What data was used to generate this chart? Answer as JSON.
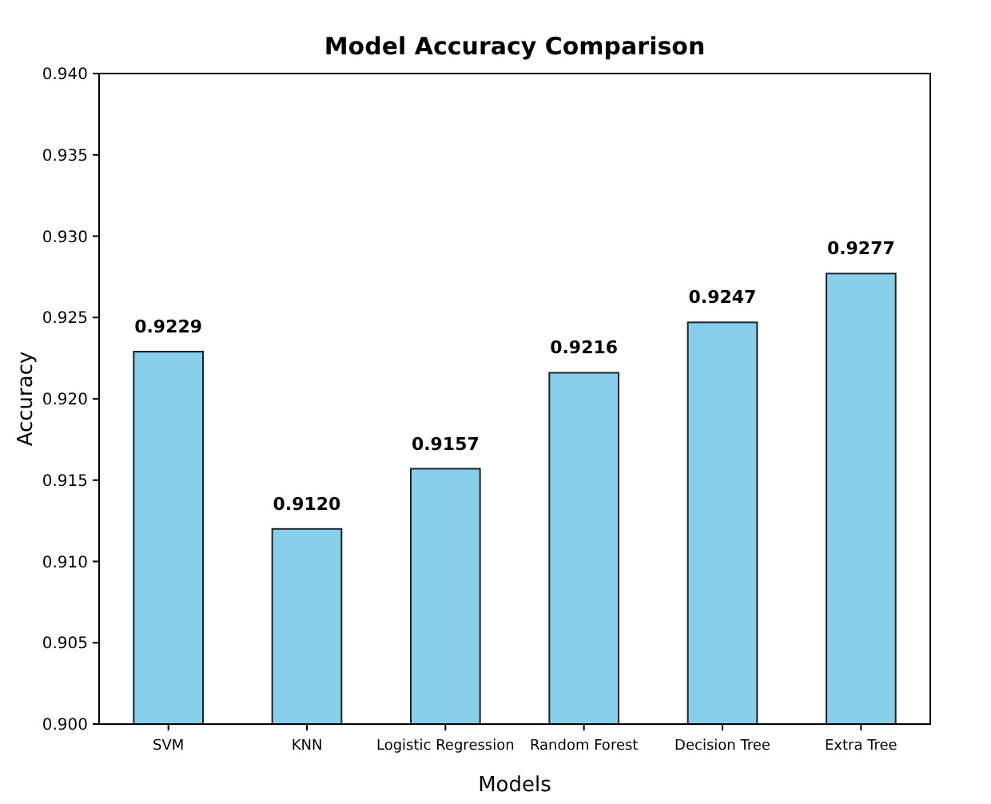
{
  "chart_data": {
    "type": "bar",
    "title": "Model Accuracy Comparison",
    "xlabel": "Models",
    "ylabel": "Accuracy",
    "categories": [
      "SVM",
      "KNN",
      "Logistic Regression",
      "Random Forest",
      "Decision Tree",
      "Extra Tree"
    ],
    "values": [
      0.9229,
      0.912,
      0.9157,
      0.9216,
      0.9247,
      0.9277
    ],
    "value_labels": [
      "0.9229",
      "0.9120",
      "0.9157",
      "0.9216",
      "0.9247",
      "0.9277"
    ],
    "color": "#87ceeb",
    "ylim": [
      0.9,
      0.94
    ],
    "yticks": [
      {
        "value": 0.9,
        "label": "0.900"
      },
      {
        "value": 0.905,
        "label": "0.905"
      },
      {
        "value": 0.91,
        "label": "0.910"
      },
      {
        "value": 0.915,
        "label": "0.915"
      },
      {
        "value": 0.92,
        "label": "0.920"
      },
      {
        "value": 0.925,
        "label": "0.925"
      },
      {
        "value": 0.93,
        "label": "0.930"
      },
      {
        "value": 0.935,
        "label": "0.935"
      },
      {
        "value": 0.94,
        "label": "0.940"
      }
    ]
  }
}
